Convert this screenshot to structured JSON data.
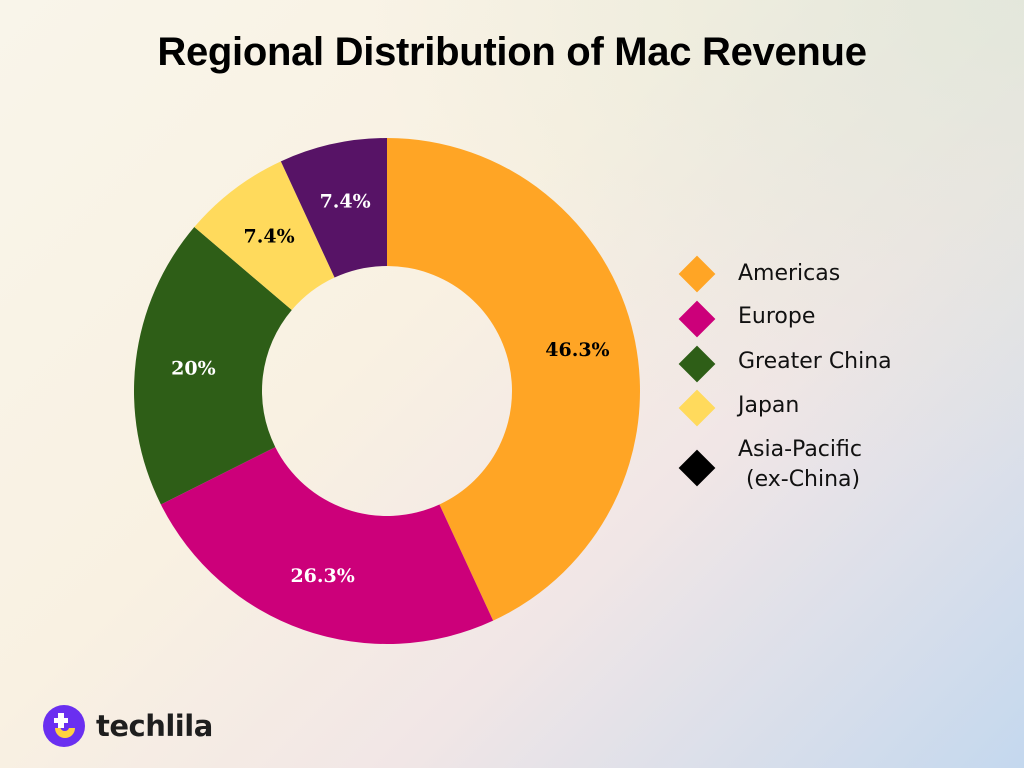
{
  "title": "Regional Distribution of Mac Revenue",
  "chart_data": {
    "type": "pie",
    "variant": "donut",
    "title": "Regional Distribution of Mac Revenue",
    "categories": [
      "Americas",
      "Europe",
      "Greater China",
      "Japan",
      "Asia-Pacific (ex-China)"
    ],
    "values": [
      46.3,
      26.3,
      20,
      7.4,
      7.4
    ],
    "labels": [
      "46.3%",
      "26.3%",
      "20%",
      "7.4%",
      "7.4%"
    ],
    "colors": [
      "#FFA525",
      "#CC007A",
      "#2E5E17",
      "#FFDA5C",
      "#571366"
    ],
    "label_colors": [
      "#000000",
      "#FFFFFF",
      "#FFFFFF",
      "#000000",
      "#FFFFFF"
    ],
    "start_angle": "top",
    "direction": "clockwise",
    "legend_position": "right"
  },
  "legend": {
    "items": [
      {
        "label": "Americas",
        "color": "#FFA525"
      },
      {
        "label": "Europe",
        "color": "#CC007A"
      },
      {
        "label": "Greater China",
        "color": "#2E5E17"
      },
      {
        "label": "Japan",
        "color": "#FFDA5C"
      },
      {
        "label": "Asia-Pacific",
        "label2": "(ex-China)",
        "color": "#000000"
      }
    ]
  },
  "brand": {
    "name": "techlila",
    "logo_icon": "techlila-logo-icon",
    "colors": {
      "purple": "#6A2FF0",
      "yellow": "#FFD23F"
    }
  }
}
